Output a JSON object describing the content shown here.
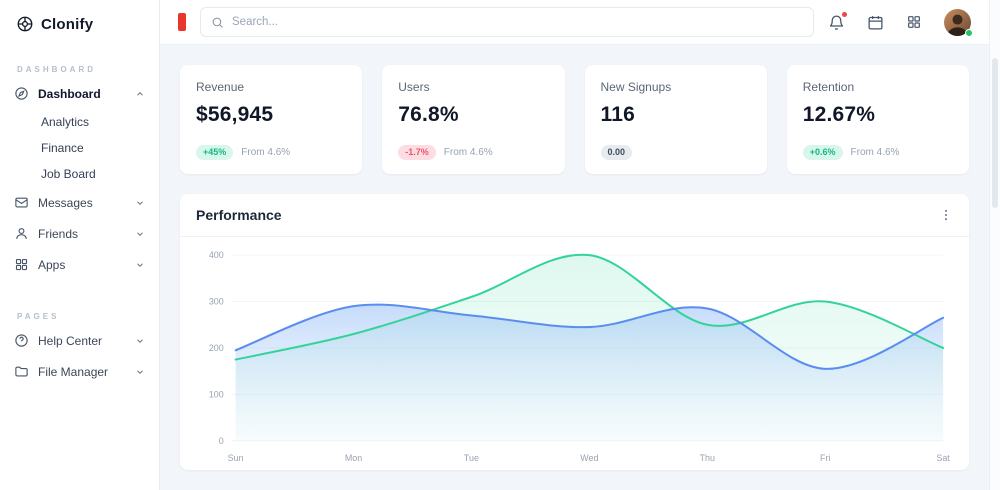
{
  "brand": {
    "name": "Clonify"
  },
  "colors": {
    "accent_red": "#e8362d",
    "positive_green": "#10b981",
    "negative_red": "#ef5466",
    "online_green": "#22c55e",
    "line_green": "#34d399",
    "line_blue": "#5b8def"
  },
  "icons": {
    "logo": "wheel",
    "search": "magnifier",
    "notifications": "bell-with-red-dot",
    "calendar": "calendar",
    "apps_launcher": "grid-squares",
    "card_menu": "kebab-dots",
    "expanded": "chevron-up",
    "collapsed": "chevron-down"
  },
  "sidebar": {
    "section_dashboard": "DASHBOARD",
    "section_pages": "PAGES",
    "items": {
      "dashboard": "Dashboard",
      "analytics": "Analytics",
      "finance": "Finance",
      "job_board": "Job Board",
      "messages": "Messages",
      "friends": "Friends",
      "apps": "Apps",
      "help_center": "Help Center",
      "file_manager": "File Manager"
    }
  },
  "topbar": {
    "search_placeholder": "Search..."
  },
  "stats": [
    {
      "title": "Revenue",
      "value": "$56,945",
      "badge": "+45%",
      "badge_type": "positive",
      "note": "From 4.6%"
    },
    {
      "title": "Users",
      "value": "76.8%",
      "badge": "-1.7%",
      "badge_type": "negative",
      "note": "From 4.6%"
    },
    {
      "title": "New Signups",
      "value": "116",
      "badge": "0.00",
      "badge_type": "neutral",
      "note": ""
    },
    {
      "title": "Retention",
      "value": "12.67%",
      "badge": "+0.6%",
      "badge_type": "positive",
      "note": "From 4.6%"
    }
  ],
  "chart_data": {
    "type": "area",
    "title": "Performance",
    "categories": [
      "Sun",
      "Mon",
      "Tue",
      "Wed",
      "Thu",
      "Fri",
      "Sat"
    ],
    "series": [
      {
        "name": "series-green",
        "color": "#34d399",
        "values": [
          175,
          230,
          310,
          400,
          250,
          300,
          200
        ]
      },
      {
        "name": "series-blue",
        "color": "#5b8def",
        "values": [
          195,
          290,
          270,
          245,
          285,
          155,
          265
        ]
      }
    ],
    "ylim": [
      0,
      400
    ],
    "yticks": [
      0,
      100,
      200,
      300,
      400
    ],
    "grid": true,
    "legend": "none"
  }
}
